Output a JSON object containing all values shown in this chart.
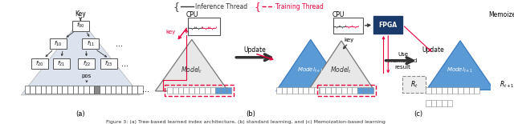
{
  "fig_width": 6.4,
  "fig_height": 1.55,
  "dpi": 100,
  "bg_color": "#ffffff",
  "legend_inference": "Inference Thread",
  "legend_training": "Training Thread",
  "inference_color": "#444444",
  "training_color": "#e8003a",
  "fpga_color": "#1a3a6b",
  "fpga_text_color": "#ffffff",
  "triangle_blue": "#5b9bd5",
  "arrow_red": "#e8003a",
  "label_a": "(a)",
  "label_b": "(b)",
  "label_c": "(c)",
  "caption": "Figure 3: (a) Tree-based learned index architecture, (b) standard learning, and (c) Memoization-based learning"
}
